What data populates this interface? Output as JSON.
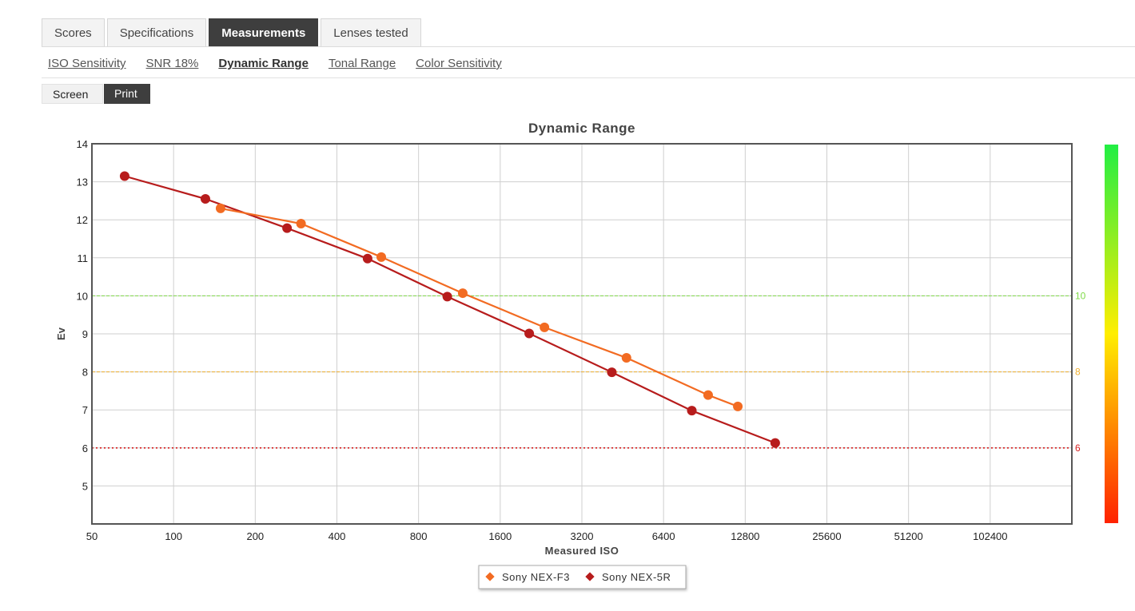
{
  "tabs": [
    {
      "label": "Scores",
      "active": false
    },
    {
      "label": "Specifications",
      "active": false
    },
    {
      "label": "Measurements",
      "active": true
    },
    {
      "label": "Lenses tested",
      "active": false
    }
  ],
  "subnav": [
    {
      "label": "ISO Sensitivity",
      "active": false
    },
    {
      "label": "SNR 18%",
      "active": false
    },
    {
      "label": "Dynamic Range",
      "active": true
    },
    {
      "label": "Tonal Range",
      "active": false
    },
    {
      "label": "Color Sensitivity",
      "active": false
    }
  ],
  "view_toggle": {
    "screen_label": "Screen",
    "print_label": "Print",
    "selected": "Print"
  },
  "chart_data": {
    "type": "line",
    "title": "Dynamic Range",
    "xlabel": "Measured ISO",
    "ylabel": "Ev",
    "x_scale": "log2",
    "xlim": [
      50,
      204800
    ],
    "ylim": [
      4,
      14
    ],
    "x_ticks": [
      "50",
      "100",
      "200",
      "400",
      "800",
      "1600",
      "3200",
      "6400",
      "12800",
      "25600",
      "51200",
      "102400"
    ],
    "y_ticks": [
      "5",
      "6",
      "7",
      "8",
      "9",
      "10",
      "11",
      "12",
      "13",
      "14"
    ],
    "grid": true,
    "legend_position": "bottom-center",
    "series": [
      {
        "name": "Sony NEX-F3",
        "color": "#f26b22",
        "x": [
          149,
          295,
          583,
          1164,
          2329,
          4672,
          9344,
          12020
        ],
        "y": [
          12.3,
          11.9,
          11.02,
          10.07,
          9.17,
          8.37,
          7.39,
          7.09
        ]
      },
      {
        "name": "Sony NEX-5R",
        "color": "#b71c1c",
        "x": [
          66,
          131,
          262,
          519,
          1021,
          2046,
          4126,
          8136,
          16514
        ],
        "y": [
          13.15,
          12.55,
          11.78,
          10.98,
          9.98,
          9.01,
          7.99,
          6.98,
          6.13
        ]
      }
    ],
    "reference_lines": [
      {
        "value": 10,
        "label": "10",
        "color": "#7fdb47",
        "style": "dashed"
      },
      {
        "value": 8,
        "label": "8",
        "color": "#f0b030",
        "style": "dashed"
      },
      {
        "value": 6,
        "label": "6",
        "color": "#d62020",
        "style": "dotted"
      }
    ],
    "color_scale": {
      "top_color": "#22ee44",
      "middle_color": "#ffee00",
      "bottom_color": "#ff2200"
    }
  }
}
